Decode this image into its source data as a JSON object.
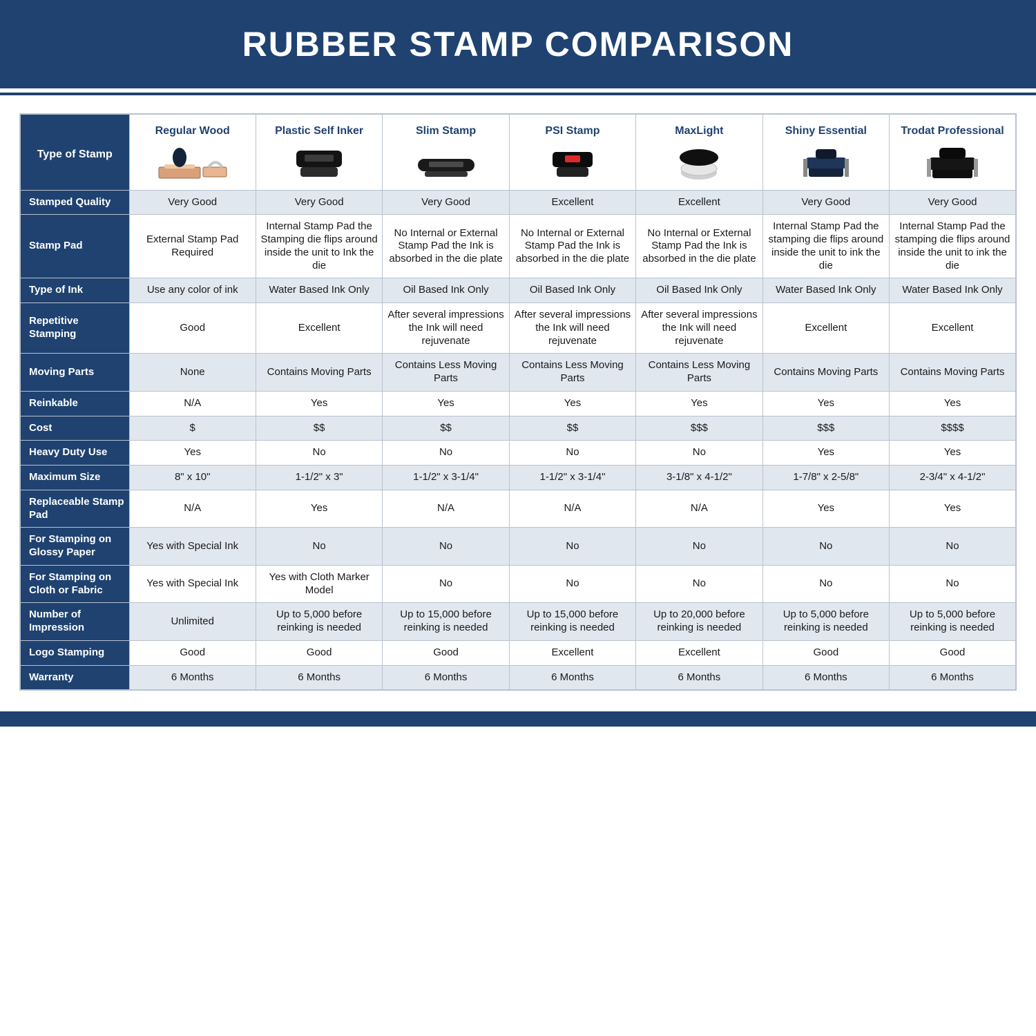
{
  "page_title": "RUBBER STAMP COMPARISON",
  "colors": {
    "navy": "#1f4270",
    "shade": "#e1e7ef",
    "border": "#b9c2cf",
    "white": "#ffffff",
    "text": "#1a1a1a"
  },
  "table": {
    "row_header_title": "Type of Stamp",
    "columns": [
      {
        "label": "Regular Wood",
        "icon": "wood"
      },
      {
        "label": "Plastic Self Inker",
        "icon": "selfinker"
      },
      {
        "label": "Slim Stamp",
        "icon": "slim"
      },
      {
        "label": "PSI Stamp",
        "icon": "psi"
      },
      {
        "label": "MaxLight",
        "icon": "maxlight"
      },
      {
        "label": "Shiny Essential",
        "icon": "shiny"
      },
      {
        "label": "Trodat Professional",
        "icon": "trodat"
      }
    ],
    "rows": [
      {
        "label": "Stamped Quality",
        "shade": true,
        "cells": [
          "Very Good",
          "Very Good",
          "Very Good",
          "Excellent",
          "Excellent",
          "Very Good",
          "Very Good"
        ]
      },
      {
        "label": "Stamp Pad",
        "shade": false,
        "cells": [
          "External Stamp Pad Required",
          "Internal Stamp Pad the Stamping die flips around inside the unit to Ink the die",
          "No Internal or External Stamp Pad the Ink is absorbed in the die plate",
          "No Internal or External Stamp Pad the Ink is absorbed in the die plate",
          "No Internal or External Stamp Pad the Ink is absorbed in the die plate",
          "Internal Stamp Pad the stamping die flips around inside the unit to ink the die",
          "Internal Stamp Pad the stamping die flips around inside the unit to ink the die"
        ]
      },
      {
        "label": "Type of Ink",
        "shade": true,
        "cells": [
          "Use any color of ink",
          "Water Based Ink Only",
          "Oil Based Ink Only",
          "Oil Based Ink Only",
          "Oil Based Ink Only",
          "Water Based Ink Only",
          "Water Based Ink Only"
        ]
      },
      {
        "label": "Repetitive Stamping",
        "shade": false,
        "cells": [
          "Good",
          "Excellent",
          "After several impressions the Ink will need rejuvenate",
          "After several impressions the Ink will need rejuvenate",
          "After several impressions the Ink will need rejuvenate",
          "Excellent",
          "Excellent"
        ]
      },
      {
        "label": "Moving Parts",
        "shade": true,
        "cells": [
          "None",
          "Contains Moving Parts",
          "Contains Less Moving Parts",
          "Contains Less Moving Parts",
          "Contains Less Moving Parts",
          "Contains Moving Parts",
          "Contains Moving Parts"
        ]
      },
      {
        "label": "Reinkable",
        "shade": false,
        "cells": [
          "N/A",
          "Yes",
          "Yes",
          "Yes",
          "Yes",
          "Yes",
          "Yes"
        ]
      },
      {
        "label": "Cost",
        "shade": true,
        "cells": [
          "$",
          "$$",
          "$$",
          "$$",
          "$$$",
          "$$$",
          "$$$$"
        ]
      },
      {
        "label": "Heavy Duty Use",
        "shade": false,
        "cells": [
          "Yes",
          "No",
          "No",
          "No",
          "No",
          "Yes",
          "Yes"
        ]
      },
      {
        "label": "Maximum Size",
        "shade": true,
        "cells": [
          "8\" x 10\"",
          "1-1/2\" x 3\"",
          "1-1/2\" x 3-1/4\"",
          "1-1/2\" x 3-1/4\"",
          "3-1/8\" x 4-1/2\"",
          "1-7/8\" x 2-5/8\"",
          "2-3/4\" x 4-1/2\""
        ]
      },
      {
        "label": "Replaceable Stamp Pad",
        "shade": false,
        "cells": [
          "N/A",
          "Yes",
          "N/A",
          "N/A",
          "N/A",
          "Yes",
          "Yes"
        ]
      },
      {
        "label": "For Stamping on Glossy Paper",
        "shade": true,
        "cells": [
          "Yes with Special Ink",
          "No",
          "No",
          "No",
          "No",
          "No",
          "No"
        ]
      },
      {
        "label": "For Stamping on Cloth or Fabric",
        "shade": false,
        "cells": [
          "Yes with Special Ink",
          "Yes with Cloth Marker Model",
          "No",
          "No",
          "No",
          "No",
          "No"
        ]
      },
      {
        "label": "Number of Impression",
        "shade": true,
        "cells": [
          "Unlimited",
          "Up to 5,000 before reinking is needed",
          "Up to 15,000 before reinking is needed",
          "Up to 15,000 before reinking is needed",
          "Up to 20,000 before reinking is needed",
          "Up to 5,000 before reinking is needed",
          "Up to 5,000 before reinking is needed"
        ]
      },
      {
        "label": "Logo Stamping",
        "shade": false,
        "cells": [
          "Good",
          "Good",
          "Good",
          "Excellent",
          "Excellent",
          "Good",
          "Good"
        ]
      },
      {
        "label": "Warranty",
        "shade": true,
        "cells": [
          "6 Months",
          "6 Months",
          "6 Months",
          "6 Months",
          "6 Months",
          "6 Months",
          "6 Months"
        ]
      }
    ]
  }
}
